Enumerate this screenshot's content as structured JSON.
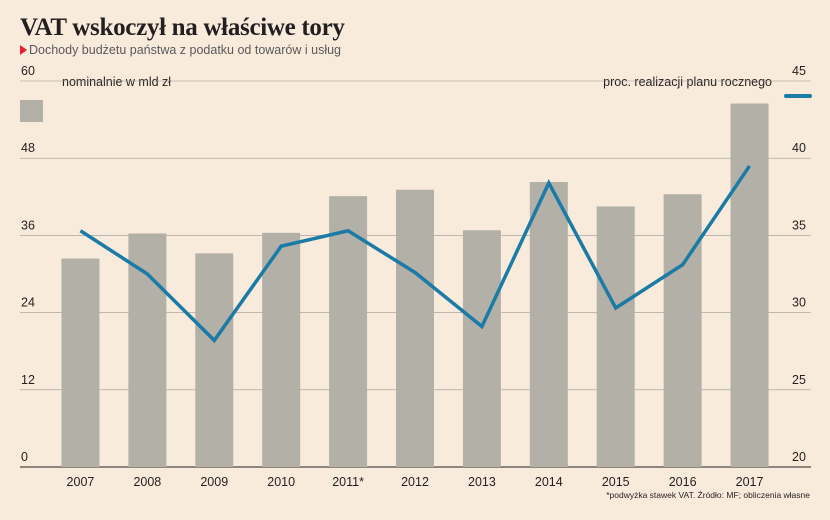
{
  "header": {
    "title": "VAT wskoczył na właściwe tory",
    "subtitle": "Dochody budżetu państwa z podatku od towarów i usług"
  },
  "legend": {
    "left_unit": "nominalnie w mld zł",
    "right_unit": "proc. realizacji planu rocznego"
  },
  "footnote": "*podwyżka stawek VAT. Źródło: MF; obliczenia własne",
  "colors": {
    "bar": "#b3b0a7",
    "line": "#1a7ba6",
    "background": "#f9ebdc",
    "accent": "#e4202a"
  },
  "chart_data": {
    "type": "bar",
    "categories": [
      "2007",
      "2008",
      "2009",
      "2010",
      "2011*",
      "2012",
      "2013",
      "2014",
      "2015",
      "2016",
      "2017"
    ],
    "series": [
      {
        "name": "nominalnie w mld zł",
        "type": "bar",
        "axis": "left",
        "values": [
          32.4,
          36.3,
          33.2,
          36.4,
          42.1,
          43.1,
          36.8,
          44.3,
          40.5,
          42.4,
          56.5
        ]
      },
      {
        "name": "proc. realizacji planu rocznego",
        "type": "line",
        "axis": "right",
        "values": [
          35.3,
          32.5,
          28.2,
          34.3,
          35.3,
          32.6,
          29.1,
          38.4,
          30.3,
          33.1,
          39.5
        ]
      }
    ],
    "left_axis": {
      "min": 0,
      "max": 60,
      "ticks": [
        0,
        12,
        24,
        36,
        48,
        60
      ]
    },
    "right_axis": {
      "min": 20,
      "max": 45,
      "ticks": [
        20,
        25,
        30,
        35,
        40,
        45
      ]
    },
    "grid": true
  }
}
